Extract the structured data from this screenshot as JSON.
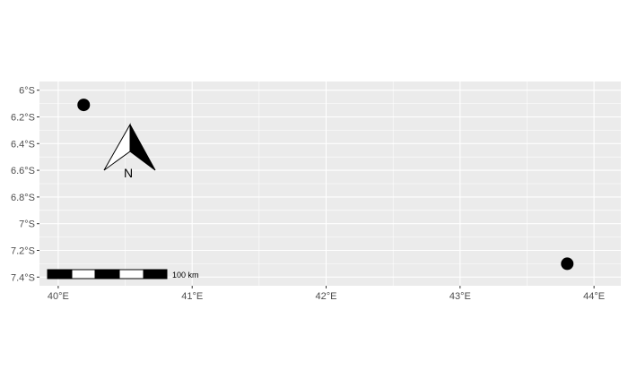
{
  "chart_data": {
    "type": "scatter",
    "title": "",
    "xlabel": "",
    "ylabel": "",
    "xlim": [
      39.86,
      44.2
    ],
    "ylim": [
      -7.465,
      -5.935
    ],
    "x_ticks": [
      {
        "value": 40,
        "label": "40°E"
      },
      {
        "value": 41,
        "label": "41°E"
      },
      {
        "value": 42,
        "label": "42°E"
      },
      {
        "value": 43,
        "label": "43°E"
      },
      {
        "value": 44,
        "label": "44°E"
      }
    ],
    "y_ticks": [
      {
        "value": -6.0,
        "label": "6°S"
      },
      {
        "value": -6.2,
        "label": "6.2°S"
      },
      {
        "value": -6.4,
        "label": "6.4°S"
      },
      {
        "value": -6.6,
        "label": "6.6°S"
      },
      {
        "value": -6.8,
        "label": "6.8°S"
      },
      {
        "value": -7.0,
        "label": "7°S"
      },
      {
        "value": -7.2,
        "label": "7.2°S"
      },
      {
        "value": -7.4,
        "label": "7.4°S"
      }
    ],
    "points": [
      {
        "x": 40.19,
        "y": -6.11
      },
      {
        "x": 43.8,
        "y": -7.3
      }
    ],
    "grid": true,
    "background": "#ebebeb",
    "grid_color": "#ffffff",
    "point_color": "#000000",
    "north_arrow": {
      "label": "N",
      "position": "top-left"
    },
    "scale_bar": {
      "label": "100 km",
      "segments": 5,
      "position": "bottom-left"
    }
  }
}
